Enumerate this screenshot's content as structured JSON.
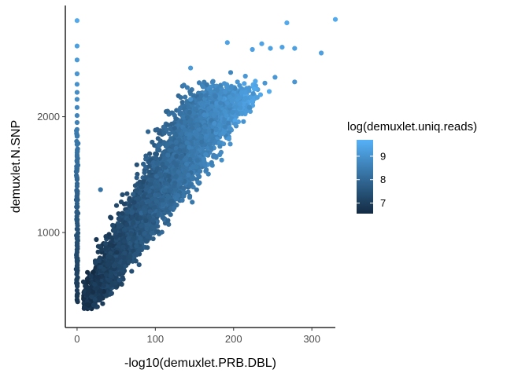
{
  "chart_data": {
    "type": "scatter",
    "xlabel": "-log10(demuxlet.PRB.DBL)",
    "ylabel": "demuxlet.N.SNP",
    "xlim": [
      -15,
      330
    ],
    "ylim": [
      180,
      2960
    ],
    "x_ticks": [
      0,
      100,
      200,
      300
    ],
    "y_ticks": [
      1000,
      2000
    ],
    "grid": false,
    "legend_position": "right",
    "legend": {
      "title": "log(demuxlet.uniq.reads)",
      "type": "continuous-colorbar",
      "range": [
        6.55,
        9.7
      ],
      "ticks": [
        7,
        8,
        9
      ],
      "color_low": "#132b43",
      "color_high": "#56b1f7"
    },
    "color_encoding": "log(demuxlet.uniq.reads)",
    "vertical_band": {
      "x": 0,
      "points": [
        [
          0,
          2830
        ],
        [
          0,
          2610
        ],
        [
          0,
          2490
        ],
        [
          0,
          2370
        ],
        [
          0,
          2280
        ],
        [
          0,
          2210
        ],
        [
          0,
          2150
        ],
        [
          0,
          2080
        ],
        [
          0,
          2010
        ],
        [
          0,
          1950
        ],
        [
          0,
          1890
        ],
        [
          0,
          1830
        ],
        [
          0,
          1760
        ],
        [
          0,
          1690
        ],
        [
          0,
          1620
        ],
        [
          0,
          1550
        ],
        [
          0,
          1470
        ],
        [
          0,
          1400
        ],
        [
          0,
          1320
        ],
        [
          0,
          1250
        ],
        [
          0,
          1170
        ],
        [
          0,
          1100
        ],
        [
          0,
          1030
        ],
        [
          0,
          960
        ],
        [
          0,
          890
        ],
        [
          0,
          830
        ],
        [
          0,
          770
        ],
        [
          0,
          710
        ],
        [
          0,
          650
        ],
        [
          0,
          600
        ],
        [
          0,
          550
        ],
        [
          0,
          500
        ],
        [
          0,
          460
        ],
        [
          0,
          420
        ]
      ]
    },
    "cloud": {
      "description": "dense cloud of roughly 5000 cells rising from about (25, 400) to about (220, 2200)",
      "approx_count": 5000
    },
    "outliers": [
      [
        330,
        2840
      ],
      [
        268,
        2810
      ],
      [
        192,
        2640
      ],
      [
        236,
        2630
      ],
      [
        262,
        2600
      ],
      [
        278,
        2590
      ],
      [
        312,
        2550
      ],
      [
        247,
        2590
      ],
      [
        224,
        2580
      ],
      [
        145,
        2420
      ],
      [
        278,
        2300
      ],
      [
        253,
        2340
      ],
      [
        215,
        2350
      ],
      [
        205,
        2300
      ],
      [
        240,
        2290
      ],
      [
        225,
        2200
      ],
      [
        220,
        2080
      ],
      [
        145,
        2150
      ],
      [
        30,
        1370
      ]
    ]
  }
}
